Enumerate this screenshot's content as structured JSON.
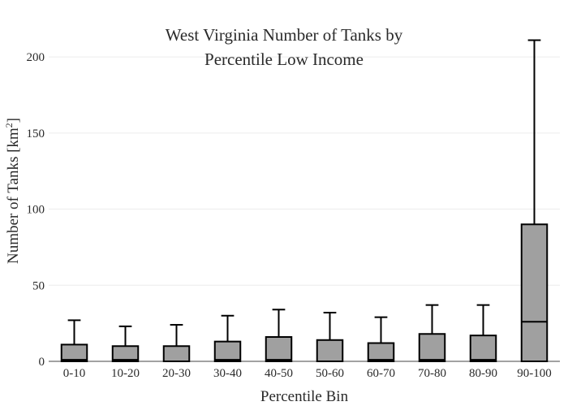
{
  "chart_data": {
    "type": "box",
    "title_line1": "West Virginia Number of Tanks by",
    "title_line2": "Percentile Low Income",
    "xlabel": "Percentile Bin",
    "ylabel_text": "Number of Tanks  [km",
    "ylabel_sup": "2",
    "ylabel_close": "]",
    "ylim": [
      0,
      215
    ],
    "yticks": [
      0,
      50,
      100,
      150,
      200
    ],
    "grid": true,
    "box_color": "#a0a0a0",
    "categories": [
      "0-10",
      "10-20",
      "20-30",
      "30-40",
      "40-50",
      "50-60",
      "60-70",
      "70-80",
      "80-90",
      "90-100"
    ],
    "boxes": [
      {
        "min": 0,
        "q1": 0,
        "median": 1,
        "q3": 11,
        "max": 27
      },
      {
        "min": 0,
        "q1": 0,
        "median": 1,
        "q3": 10,
        "max": 23
      },
      {
        "min": 0,
        "q1": 0,
        "median": 0,
        "q3": 10,
        "max": 24
      },
      {
        "min": 0,
        "q1": 0,
        "median": 1,
        "q3": 13,
        "max": 30
      },
      {
        "min": 0,
        "q1": 0,
        "median": 1,
        "q3": 16,
        "max": 34
      },
      {
        "min": 0,
        "q1": 0,
        "median": 0,
        "q3": 14,
        "max": 32
      },
      {
        "min": 0,
        "q1": 0,
        "median": 1,
        "q3": 12,
        "max": 29
      },
      {
        "min": 0,
        "q1": 0,
        "median": 1,
        "q3": 18,
        "max": 37
      },
      {
        "min": 0,
        "q1": 0,
        "median": 1,
        "q3": 17,
        "max": 37
      },
      {
        "min": 0,
        "q1": 0,
        "median": 26,
        "q3": 90,
        "max": 211
      }
    ]
  }
}
